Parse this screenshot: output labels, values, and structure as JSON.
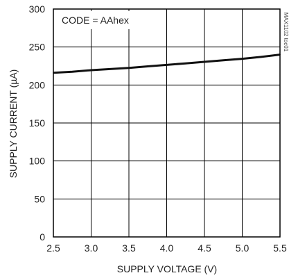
{
  "chart_data": {
    "type": "line",
    "xlabel": "SUPPLY VOLTAGE (V)",
    "ylabel": "SUPPLY CURRENT (µA)",
    "annotation": "CODE = AAhex",
    "figure_id": "MAX1102 toc01",
    "xlim": [
      2.5,
      5.5
    ],
    "ylim": [
      0,
      300
    ],
    "x_ticks": [
      "2.5",
      "3.0",
      "3.5",
      "4.0",
      "4.5",
      "5.0",
      "5.5"
    ],
    "y_ticks": [
      "0",
      "50",
      "100",
      "150",
      "200",
      "250",
      "300"
    ],
    "grid": true,
    "series": [
      {
        "x": [
          2.5,
          2.75,
          3.0,
          3.25,
          3.5,
          3.75,
          4.0,
          4.25,
          4.5,
          4.75,
          5.0,
          5.25,
          5.5
        ],
        "y": [
          216,
          217.5,
          219.5,
          221,
          222.5,
          224.5,
          226.5,
          228.5,
          230.5,
          232.5,
          234.5,
          237,
          240
        ]
      }
    ],
    "colors": {
      "line": "#111111",
      "grid": "#000000",
      "frame": "#000000"
    }
  }
}
